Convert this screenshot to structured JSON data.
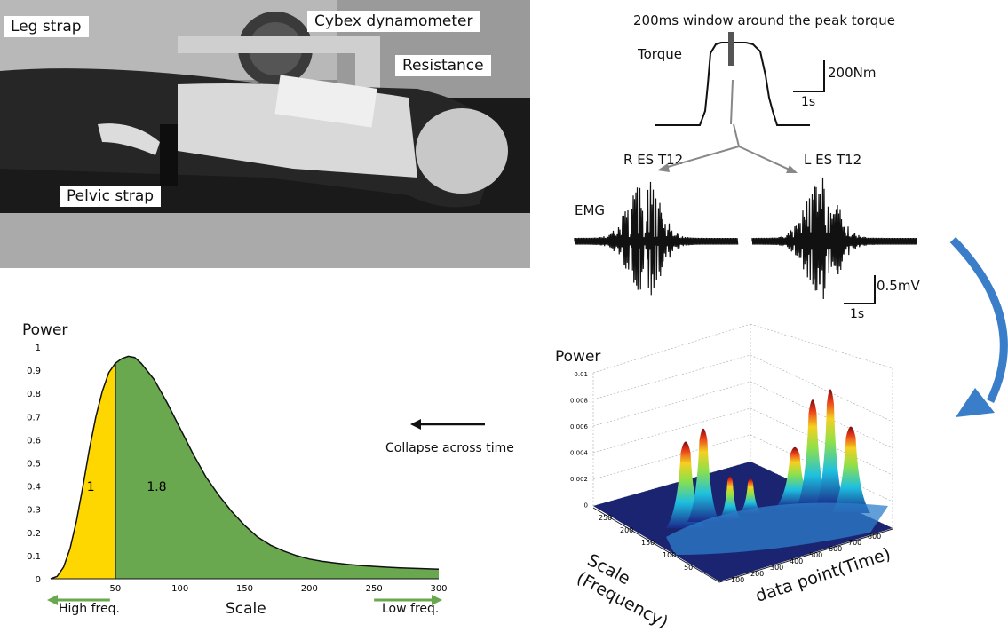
{
  "photo": {
    "leg_strap": "Leg strap",
    "cybex": "Cybex dynamometer",
    "resistance": "Resistance",
    "pelvic_strap": "Pelvic strap"
  },
  "signals": {
    "window_label": "200ms window around the peak torque",
    "torque_label": "Torque",
    "torque_scale": "200Nm",
    "time_scale": "1s",
    "r_label": "R ES T12",
    "l_label": "L ES T12",
    "emg_label": "EMG",
    "emg_scale": "0.5mV",
    "emg_time_scale": "1s"
  },
  "surface_plot": {
    "z_label": "Power",
    "z_ticks": [
      "0.01",
      "0.008",
      "0.006",
      "0.004",
      "0.002",
      "0"
    ],
    "scale_ticks": [
      "250",
      "200",
      "150",
      "100",
      "50"
    ],
    "time_ticks": [
      "100",
      "200",
      "300",
      "400",
      "500",
      "600",
      "700",
      "800"
    ],
    "y_axis_label_line1": "Scale",
    "y_axis_label_line2": "(Frequency)",
    "x_axis_label": "data point(Time)"
  },
  "collapse_label": "Collapse across time",
  "chart_data": {
    "type": "area",
    "ylabel": "Power",
    "xlabel": "Scale",
    "ylim": [
      0,
      1
    ],
    "xlim": [
      0,
      300
    ],
    "y_ticks": [
      "1",
      "0.9",
      "0.8",
      "0.7",
      "0.6",
      "0.5",
      "0.4",
      "0.3",
      "0.2",
      "0.1",
      "0"
    ],
    "x_ticks": [
      "50",
      "100",
      "150",
      "200",
      "250",
      "300"
    ],
    "x": [
      5,
      10,
      15,
      20,
      25,
      30,
      35,
      40,
      45,
      50,
      55,
      60,
      65,
      70,
      80,
      90,
      100,
      110,
      120,
      130,
      140,
      150,
      160,
      170,
      180,
      190,
      200,
      210,
      220,
      230,
      240,
      250,
      260,
      270,
      280,
      290,
      300
    ],
    "values": [
      0.01,
      0.05,
      0.13,
      0.25,
      0.4,
      0.56,
      0.7,
      0.81,
      0.89,
      0.93,
      0.95,
      0.96,
      0.955,
      0.93,
      0.86,
      0.76,
      0.65,
      0.54,
      0.44,
      0.36,
      0.29,
      0.23,
      0.18,
      0.145,
      0.12,
      0.1,
      0.085,
      0.075,
      0.068,
      0.062,
      0.057,
      0.053,
      0.05,
      0.047,
      0.045,
      0.043,
      0.041
    ],
    "split_x": 50,
    "region_labels": [
      "1",
      "1.8"
    ],
    "region_colors": [
      "#FFD700",
      "#6AA84F"
    ],
    "high_freq_label": "High freq.",
    "low_freq_label": "Low freq.",
    "arrow_color": "#6AA84F"
  },
  "colors": {
    "curved_arrow": "#3A7DC8",
    "signal_line": "#111111",
    "split_arrow": "#888888"
  }
}
